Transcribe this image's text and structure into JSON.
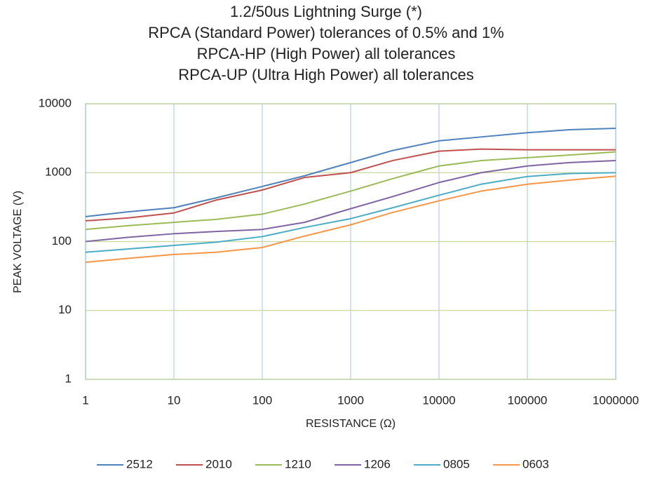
{
  "chart_data": {
    "type": "line",
    "title": [
      "1.2/50us Lightning Surge (*)",
      "RPCA (Standard Power) tolerances of 0.5% and 1%",
      "RPCA-HP (High Power) all tolerances",
      "RPCA-UP (Ultra High Power) all tolerances"
    ],
    "x_label": "RESISTANCE (Ω)",
    "y_label": "PEAK VOLTAGE (V)",
    "xscale": "log",
    "yscale": "log",
    "grid": true,
    "legend": "bottom",
    "xlim": [
      1,
      1000000
    ],
    "ylim": [
      1,
      10000
    ],
    "xticks": [
      1,
      10,
      100,
      1000,
      10000,
      100000,
      1000000
    ],
    "yticks": [
      1,
      10,
      100,
      1000,
      10000
    ],
    "x": [
      1,
      3,
      10,
      30,
      100,
      300,
      1000,
      3000,
      10000,
      30000,
      100000,
      300000,
      1000000
    ],
    "series": [
      {
        "name": "2512",
        "color": "#4f81bd",
        "values": [
          230,
          270,
          310,
          430,
          630,
          900,
          1400,
          2100,
          2900,
          3300,
          3800,
          4200,
          4400
        ]
      },
      {
        "name": "2010",
        "color": "#c0504d",
        "values": [
          200,
          220,
          260,
          400,
          560,
          850,
          1000,
          1500,
          2050,
          2200,
          2150,
          2150,
          2150
        ]
      },
      {
        "name": "1210",
        "color": "#9bbb59",
        "values": [
          150,
          170,
          190,
          210,
          250,
          350,
          540,
          820,
          1250,
          1500,
          1650,
          1800,
          2000
        ]
      },
      {
        "name": "1206",
        "color": "#8064a2",
        "values": [
          100,
          115,
          130,
          140,
          150,
          190,
          300,
          450,
          720,
          1000,
          1250,
          1400,
          1500
        ]
      },
      {
        "name": "0805",
        "color": "#4bacc6",
        "values": [
          70,
          78,
          88,
          98,
          118,
          160,
          215,
          310,
          470,
          680,
          880,
          970,
          1000
        ]
      },
      {
        "name": "0603",
        "color": "#f79646",
        "values": [
          50,
          57,
          65,
          70,
          82,
          120,
          175,
          265,
          390,
          540,
          680,
          780,
          890
        ]
      }
    ]
  }
}
